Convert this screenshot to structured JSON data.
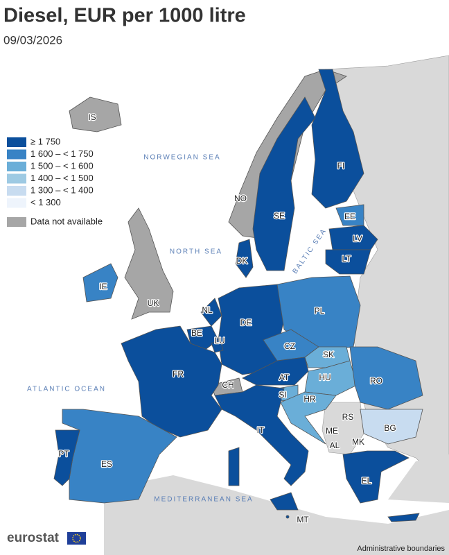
{
  "title": "Diesel, EUR per 1000 litre",
  "date": "09/03/2026",
  "legend": {
    "items": [
      {
        "label": "≥ 1 750",
        "color": "#0b4f9c"
      },
      {
        "label": "1 600 – < 1 750",
        "color": "#3883c5"
      },
      {
        "label": "1 500 – < 1 600",
        "color": "#6aaed8"
      },
      {
        "label": "1 400 – < 1 500",
        "color": "#9ecae3"
      },
      {
        "label": "1 300 – < 1 400",
        "color": "#c8dcf0"
      },
      {
        "label": "< 1 300",
        "color": "#eef4fc"
      }
    ],
    "not_available": {
      "label": "Data not available",
      "color": "#a6a6a6"
    }
  },
  "seas": [
    "NORWEGIAN SEA",
    "NORTH SEA",
    "BALTIC SEA",
    "ATLANTIC OCEAN",
    "MEDITERRANEAN SEA"
  ],
  "countries": [
    {
      "label": "IS",
      "class": null
    },
    {
      "label": "NO",
      "class": null
    },
    {
      "label": "UK",
      "class": null
    },
    {
      "label": "FI",
      "class": 0
    },
    {
      "label": "SE",
      "class": 0
    },
    {
      "label": "EE",
      "class": 1
    },
    {
      "label": "LV",
      "class": 0
    },
    {
      "label": "LT",
      "class": 0
    },
    {
      "label": "DK",
      "class": 0
    },
    {
      "label": "IE",
      "class": 1
    },
    {
      "label": "NL",
      "class": 0
    },
    {
      "label": "BE",
      "class": 0
    },
    {
      "label": "LU",
      "class": 0
    },
    {
      "label": "DE",
      "class": 0
    },
    {
      "label": "PL",
      "class": 1
    },
    {
      "label": "CZ",
      "class": 1
    },
    {
      "label": "SK",
      "class": 2
    },
    {
      "label": "AT",
      "class": 0
    },
    {
      "label": "HU",
      "class": 2
    },
    {
      "label": "SI",
      "class": 2
    },
    {
      "label": "HR",
      "class": 2
    },
    {
      "label": "RO",
      "class": 1
    },
    {
      "label": "BG",
      "class": 4
    },
    {
      "label": "RS",
      "class": null
    },
    {
      "label": "ME",
      "class": null
    },
    {
      "label": "AL",
      "class": null
    },
    {
      "label": "MK",
      "class": null
    },
    {
      "label": "EL",
      "class": 0
    },
    {
      "label": "IT",
      "class": 0
    },
    {
      "label": "CH",
      "class": null
    },
    {
      "label": "FR",
      "class": 0
    },
    {
      "label": "ES",
      "class": 1
    },
    {
      "label": "PT",
      "class": 0
    },
    {
      "label": "MT",
      "class": 0
    }
  ],
  "footer": {
    "logo": "eurostat",
    "note": "Administrative boundaries"
  }
}
